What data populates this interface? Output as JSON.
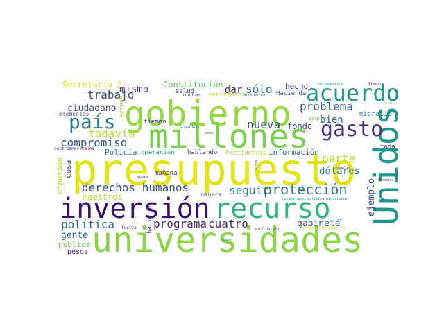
{
  "words": [
    {
      "text": "presupuesto",
      "color": "#e3e418"
    },
    {
      "text": "universidades",
      "color": "#8bd646"
    },
    {
      "text": "gobierno",
      "color": "#95d840"
    },
    {
      "text": "millones",
      "color": "#7ad151"
    },
    {
      "text": "inversión",
      "color": "#3b0f70"
    },
    {
      "text": "recurso",
      "color": "#2fb47c"
    },
    {
      "text": "Unidos",
      "color": "#1f988b"
    },
    {
      "text": "acuerdo",
      "color": "#1f968b"
    },
    {
      "text": "gasto",
      "color": "#46327e"
    },
    {
      "text": "país",
      "color": "#2a788e"
    },
    {
      "text": "protección",
      "color": "#2d718e"
    },
    {
      "text": "derechos humanos",
      "color": "#3b528b"
    },
    {
      "text": "compromiso",
      "color": "#355f8d"
    },
    {
      "text": "problema",
      "color": "#355e8d"
    },
    {
      "text": "parte",
      "color": "#b5de2b"
    },
    {
      "text": "dólares",
      "color": "#2a788e"
    },
    {
      "text": "política",
      "color": "#31688e"
    },
    {
      "text": "programa",
      "color": "#482878"
    },
    {
      "text": "cuatro",
      "color": "#472c7a"
    },
    {
      "text": "trabajo",
      "color": "#3e4989"
    },
    {
      "text": "mismo",
      "color": "#433e85"
    },
    {
      "text": "nueva",
      "color": "#3b528b"
    },
    {
      "text": "sólo",
      "color": "#31688e"
    },
    {
      "text": "todavía",
      "color": "#b8de29"
    },
    {
      "text": "seguir",
      "color": "#26828e"
    },
    {
      "text": "bien",
      "color": "#2c728e"
    },
    {
      "text": "ciudadano",
      "color": "#3e4c8a"
    },
    {
      "text": "gente",
      "color": "#31688e"
    },
    {
      "text": "dar",
      "color": "#482475"
    },
    {
      "text": "gabinete",
      "color": "#3a548c"
    },
    {
      "text": "ejemplo",
      "color": "#3e4c8a"
    },
    {
      "text": "Constitución",
      "color": "#5ec962"
    },
    {
      "text": "Secretaría",
      "color": "#d0e11c"
    },
    {
      "text": "maestros",
      "color": "#b5de2b"
    },
    {
      "text": "fondo",
      "color": "#3e4a89"
    },
    {
      "text": "hecho",
      "color": "#404688"
    },
    {
      "text": "Policía",
      "color": "#297b8e"
    },
    {
      "text": "pública",
      "color": "#6ece58"
    },
    {
      "text": "diputado",
      "color": "#b8de29"
    },
    {
      "text": "cosa",
      "color": "#46337e"
    },
    {
      "text": "información",
      "color": "#33638d"
    },
    {
      "text": "migración",
      "color": "#2b748e"
    },
    {
      "text": "mañana",
      "color": "#453781"
    },
    {
      "text": "pesos",
      "color": "#46307e"
    },
    {
      "text": "haciendo",
      "color": "#443a83"
    },
    {
      "text": "Presidencia",
      "color": "#c2df23"
    },
    {
      "text": "operación",
      "color": "#22a884"
    },
    {
      "text": "hablando",
      "color": "#414487"
    },
    {
      "text": "Hacienda",
      "color": "#3b528b"
    },
    {
      "text": "salud",
      "color": "#3e4a89"
    },
    {
      "text": "tiempo",
      "color": "#472d7b"
    },
    {
      "text": "avance",
      "color": "#a2da37"
    },
    {
      "text": "elementos",
      "color": "#404688"
    },
    {
      "text": "toda",
      "color": "#482878"
    },
    {
      "text": "manera",
      "color": "#3e4c8a"
    },
    {
      "text": "asunto",
      "color": "#7ad151"
    },
    {
      "text": "secretario",
      "color": "#b5de2b"
    },
    {
      "text": "muchas",
      "color": "#443983"
    },
    {
      "text": "atender",
      "color": "#2a788e"
    },
    {
      "text": "años",
      "color": "#3f4788"
    },
    {
      "text": "centroamericanos",
      "color": "#482677"
    },
    {
      "text": "apoyo",
      "color": "#472c7a"
    },
    {
      "text": "visas",
      "color": "#46337e"
    },
    {
      "text": "cumplir",
      "color": "#482173"
    },
    {
      "text": "derecho",
      "color": "#39568c"
    },
    {
      "text": "fuerza",
      "color": "#481769"
    },
    {
      "text": "evaluación",
      "color": "#3e4989"
    },
    {
      "text": "etapa",
      "color": "#2e6f8e"
    },
    {
      "text": "seguridad pública",
      "color": "#c0df25"
    },
    {
      "text": "necesitamos política migratoria",
      "color": "#24868e"
    },
    {
      "text": "Centroamérica",
      "color": "#1f9e89"
    },
    {
      "text": "disminución",
      "color": "#31688e"
    },
    {
      "text": "dinero",
      "color": "#481c6e"
    },
    {
      "text": "momento",
      "color": "#a5db36"
    },
    {
      "text": "cuenta",
      "color": "#dde318"
    },
    {
      "text": "hoy",
      "color": "#2db27d"
    },
    {
      "text": "varios",
      "color": "#7fd34e"
    }
  ]
}
